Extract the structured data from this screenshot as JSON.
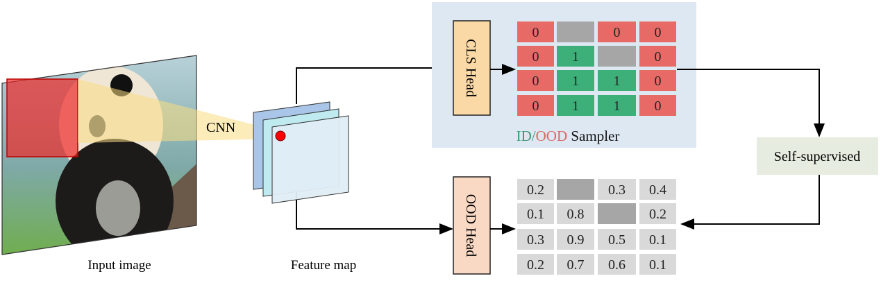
{
  "labels": {
    "input_image": "Input image",
    "feature_map": "Feature map",
    "cnn": "CNN",
    "cls_head": "CLS Head",
    "ood_head": "OOD Head",
    "self_supervised": "Self-supervised",
    "sampler_id": "ID",
    "sampler_sep": "/",
    "sampler_ood": "OOD",
    "sampler_rest": " Sampler"
  },
  "cls_grid": [
    [
      "0",
      "",
      "0",
      "0"
    ],
    [
      "0",
      "1",
      "",
      "0"
    ],
    [
      "0",
      "1",
      "1",
      "0"
    ],
    [
      "0",
      "1",
      "1",
      "0"
    ]
  ],
  "ood_grid": [
    [
      "0.2",
      "",
      "0.3",
      "0.4"
    ],
    [
      "0.1",
      "0.8",
      "",
      "0.2"
    ],
    [
      "0.3",
      "0.9",
      "0.5",
      "0.1"
    ],
    [
      "0.2",
      "0.7",
      "0.6",
      "0.1"
    ]
  ],
  "colors": {
    "id_green": "#3daf78",
    "ood_red": "#e86a66",
    "masked_gray": "#a6a6a6",
    "score_gray": "#d9d9d9",
    "panel_blue": "#dde8f3",
    "cls_head_fill": "#fad9a6",
    "ood_head_fill": "#f9d8c4",
    "self_sup_fill": "#e6ede0"
  }
}
